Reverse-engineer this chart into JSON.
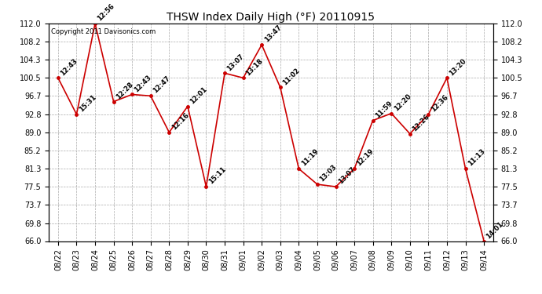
{
  "title": "THSW Index Daily High (°F) 20110915",
  "copyright": "Copyright 2011 Davisonics.com",
  "dates": [
    "08/22",
    "08/23",
    "08/24",
    "08/25",
    "08/26",
    "08/27",
    "08/28",
    "08/29",
    "08/30",
    "08/31",
    "09/01",
    "09/02",
    "09/03",
    "09/04",
    "09/05",
    "09/06",
    "09/07",
    "09/08",
    "09/09",
    "09/10",
    "09/11",
    "09/12",
    "09/13",
    "09/14"
  ],
  "values": [
    100.5,
    92.8,
    112.0,
    95.5,
    97.0,
    96.7,
    89.0,
    94.5,
    77.5,
    101.5,
    100.5,
    107.5,
    98.5,
    81.3,
    78.0,
    77.5,
    81.3,
    91.5,
    93.0,
    88.7,
    92.8,
    100.5,
    81.3,
    66.0
  ],
  "labels": [
    "12:43",
    "15:31",
    "12:56",
    "12:28",
    "12:43",
    "12:47",
    "12:16",
    "12:01",
    "15:11",
    "13:07",
    "13:18",
    "13:47",
    "11:02",
    "11:19",
    "13:03",
    "13:07",
    "12:19",
    "11:59",
    "12:20",
    "12:26",
    "12:36",
    "13:20",
    "11:13",
    "14:01"
  ],
  "ylim": [
    66.0,
    112.0
  ],
  "yticks": [
    66.0,
    69.8,
    73.7,
    77.5,
    81.3,
    85.2,
    89.0,
    92.8,
    96.7,
    100.5,
    104.3,
    108.2,
    112.0
  ],
  "line_color": "#cc0000",
  "marker_color": "#cc0000",
  "bg_color": "#ffffff",
  "grid_color": "#aaaaaa",
  "title_fontsize": 10,
  "label_fontsize": 6,
  "axis_fontsize": 7,
  "copyright_fontsize": 6
}
